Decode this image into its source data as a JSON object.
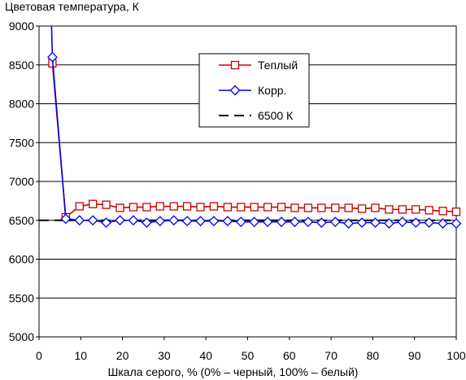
{
  "chart_data": {
    "type": "line",
    "title": "",
    "ylabel": "Цветовая температура, К",
    "xlabel": "Шкала серого, % (0% – черный, 100% – белый)",
    "xlim": [
      0,
      100
    ],
    "ylim": [
      5000,
      9000
    ],
    "xticks": [
      0,
      10,
      20,
      30,
      40,
      50,
      60,
      70,
      80,
      90,
      100
    ],
    "yticks": [
      5000,
      5500,
      6000,
      6500,
      7000,
      7500,
      8000,
      8500,
      9000
    ],
    "grid": "horizontal",
    "legend_position": "upper-center",
    "x": [
      3.2,
      6.4,
      9.7,
      12.9,
      16.1,
      19.4,
      22.6,
      25.8,
      29.0,
      32.3,
      35.5,
      38.7,
      41.9,
      45.2,
      48.4,
      51.6,
      54.8,
      58.1,
      61.3,
      64.5,
      67.7,
      71.0,
      74.2,
      77.4,
      80.6,
      83.9,
      87.1,
      90.3,
      93.5,
      96.8,
      100.0
    ],
    "series": [
      {
        "name": "Теплый",
        "color": "#cc0000",
        "marker": "square",
        "values": [
          8520,
          6540,
          6680,
          6710,
          6700,
          6660,
          6670,
          6670,
          6680,
          6680,
          6680,
          6670,
          6680,
          6670,
          6670,
          6670,
          6670,
          6670,
          6660,
          6660,
          6660,
          6660,
          6660,
          6650,
          6660,
          6640,
          6640,
          6640,
          6630,
          6620,
          6610
        ]
      },
      {
        "name": "Корр.",
        "color": "#0000ee",
        "marker": "diamond",
        "lead_in": [
          [
            3.0,
            9000
          ]
        ],
        "values": [
          8600,
          6520,
          6500,
          6500,
          6470,
          6500,
          6500,
          6470,
          6490,
          6500,
          6490,
          6490,
          6490,
          6490,
          6480,
          6480,
          6480,
          6480,
          6480,
          6480,
          6470,
          6480,
          6460,
          6470,
          6470,
          6460,
          6480,
          6470,
          6470,
          6460,
          6460
        ]
      },
      {
        "name": "6500 К",
        "color": "#000000",
        "style": "dashed",
        "x": [
          0,
          100
        ],
        "values": [
          6500,
          6500
        ]
      }
    ]
  }
}
